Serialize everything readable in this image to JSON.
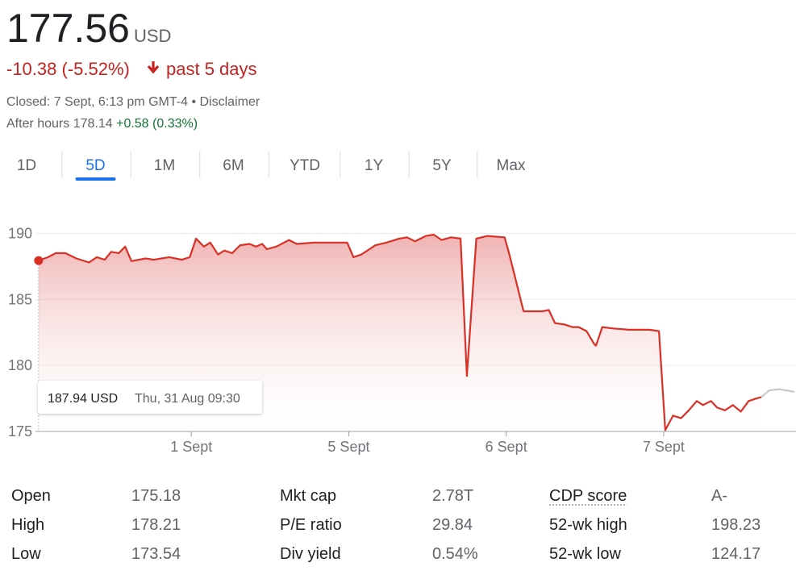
{
  "header": {
    "price": "177.56",
    "currency": "USD",
    "change": "-10.38 (-5.52%)",
    "period": "past 5 days",
    "closed": "Closed: 7 Sept, 6:13 pm GMT-4 •",
    "disclaimer": "Disclaimer",
    "after_hours": "After hours 178.14",
    "after_hours_change": "+0.58 (0.33%)"
  },
  "tabs": [
    {
      "label": "1D",
      "selected": false
    },
    {
      "label": "5D",
      "selected": true
    },
    {
      "label": "1M",
      "selected": false
    },
    {
      "label": "6M",
      "selected": false
    },
    {
      "label": "YTD",
      "selected": false
    },
    {
      "label": "1Y",
      "selected": false
    },
    {
      "label": "5Y",
      "selected": false
    },
    {
      "label": "Max",
      "selected": false
    }
  ],
  "chart_data": {
    "type": "line",
    "xlim": [
      0,
      4.84
    ],
    "xticks": [
      {
        "value": 1,
        "label": "1 Sept"
      },
      {
        "value": 2,
        "label": "5 Sept"
      },
      {
        "value": 3,
        "label": "6 Sept"
      },
      {
        "value": 4,
        "label": "7 Sept"
      }
    ],
    "ylim": [
      175,
      191
    ],
    "yticks": [
      175,
      180,
      185,
      190
    ],
    "grid": true,
    "series": [
      {
        "color": "#d93025",
        "area": true,
        "x": [
          0.03,
          0.09,
          0.14,
          0.2,
          0.27,
          0.35,
          0.4,
          0.45,
          0.49,
          0.54,
          0.58,
          0.62,
          0.71,
          0.76,
          0.86,
          0.94,
          0.99,
          1.03,
          1.08,
          1.12,
          1.17,
          1.21,
          1.26,
          1.31,
          1.37,
          1.41,
          1.45,
          1.48,
          1.54,
          1.62,
          1.67,
          1.78,
          1.99,
          2.03,
          2.08,
          2.17,
          2.24,
          2.32,
          2.37,
          2.42,
          2.49,
          2.54,
          2.59,
          2.65,
          2.71,
          2.75,
          2.81,
          2.88,
          2.99,
          3.02,
          3.06,
          3.11,
          3.16,
          3.23,
          3.27,
          3.31,
          3.37,
          3.42,
          3.46,
          3.51,
          3.56,
          3.57,
          3.61,
          3.68,
          3.78,
          3.85,
          3.91,
          3.97,
          4.01,
          4.06,
          4.11,
          4.16,
          4.21,
          4.25,
          4.3,
          4.34,
          4.39,
          4.44,
          4.49,
          4.54,
          4.59,
          4.62
        ],
        "values": [
          187.94,
          188.2,
          188.5,
          188.5,
          188.1,
          187.8,
          188.2,
          188.0,
          188.6,
          188.5,
          189.0,
          187.9,
          188.1,
          188.0,
          188.2,
          188.0,
          188.2,
          189.6,
          189.0,
          189.3,
          188.4,
          188.7,
          188.5,
          189.1,
          189.2,
          189.0,
          189.2,
          188.8,
          189.0,
          189.5,
          189.2,
          189.3,
          189.3,
          188.2,
          188.4,
          189.1,
          189.3,
          189.6,
          189.7,
          189.4,
          189.8,
          189.9,
          189.5,
          189.7,
          189.6,
          179.2,
          189.6,
          189.8,
          189.7,
          188.4,
          186.5,
          184.1,
          184.1,
          184.1,
          184.2,
          183.2,
          183.1,
          182.9,
          182.9,
          182.6,
          181.6,
          181.5,
          182.9,
          182.8,
          182.7,
          182.7,
          182.7,
          182.6,
          175.1,
          176.2,
          176.0,
          176.6,
          177.3,
          177.0,
          177.3,
          176.8,
          176.6,
          177.0,
          176.5,
          177.3,
          177.5,
          177.6
        ]
      },
      {
        "color": "#c8c8c8",
        "area": false,
        "x": [
          4.62,
          4.67,
          4.73,
          4.78,
          4.83
        ],
        "values": [
          177.6,
          178.1,
          178.2,
          178.1,
          178.0
        ]
      }
    ],
    "tooltip": {
      "value_label": "187.94 USD",
      "time": "Thu, 31 Aug 09:30"
    }
  },
  "stats": [
    [
      {
        "label": "Open",
        "value": "175.18"
      },
      {
        "label": "High",
        "value": "178.21"
      },
      {
        "label": "Low",
        "value": "173.54"
      }
    ],
    [
      {
        "label": "Mkt cap",
        "value": "2.78T"
      },
      {
        "label": "P/E ratio",
        "value": "29.84"
      },
      {
        "label": "Div yield",
        "value": "0.54%"
      }
    ],
    [
      {
        "label": "CDP score",
        "value": "A-"
      },
      {
        "label": "52-wk high",
        "value": "198.23"
      },
      {
        "label": "52-wk low",
        "value": "124.17"
      }
    ]
  ]
}
